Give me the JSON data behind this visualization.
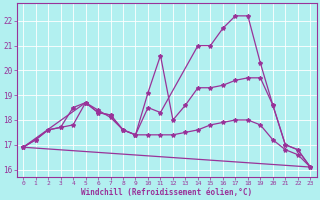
{
  "xlabel": "Windchill (Refroidissement éolien,°C)",
  "background_color": "#b2f0f0",
  "line_color": "#993399",
  "grid_color": "#ffffff",
  "xlim": [
    -0.5,
    23.5
  ],
  "ylim": [
    15.7,
    22.7
  ],
  "yticks": [
    16,
    17,
    18,
    19,
    20,
    21,
    22
  ],
  "xticks": [
    0,
    1,
    2,
    3,
    4,
    5,
    6,
    7,
    8,
    9,
    10,
    11,
    12,
    13,
    14,
    15,
    16,
    17,
    18,
    19,
    20,
    21,
    22,
    23
  ],
  "line1_x": [
    0,
    1,
    2,
    3,
    4,
    5,
    6,
    7,
    8,
    9,
    10,
    11,
    14,
    15,
    16,
    17,
    18,
    19,
    20,
    21,
    22,
    23
  ],
  "line1_y": [
    16.9,
    17.2,
    17.6,
    17.7,
    17.8,
    18.7,
    18.3,
    18.2,
    17.6,
    17.4,
    18.5,
    18.3,
    21.0,
    21.0,
    21.7,
    22.2,
    22.2,
    20.3,
    18.6,
    17.0,
    16.8,
    16.1
  ],
  "line2_x": [
    0,
    5,
    6,
    7,
    8,
    9,
    10,
    11,
    12,
    13,
    14,
    15,
    16,
    17,
    18,
    19,
    20,
    21,
    22,
    23
  ],
  "line2_y": [
    16.9,
    18.7,
    18.3,
    18.2,
    17.6,
    17.4,
    19.1,
    20.6,
    18.0,
    18.6,
    19.3,
    19.3,
    19.4,
    19.6,
    19.7,
    19.7,
    18.6,
    17.0,
    16.8,
    16.1
  ],
  "line3_x": [
    0,
    1,
    2,
    3,
    4,
    5,
    6,
    7,
    8,
    9,
    10,
    11,
    12,
    13,
    14,
    15,
    16,
    17,
    18,
    19,
    20,
    21,
    22,
    23
  ],
  "line3_y": [
    16.9,
    17.2,
    17.6,
    17.7,
    18.5,
    18.7,
    18.4,
    18.1,
    17.6,
    17.4,
    17.4,
    17.4,
    17.4,
    17.5,
    17.6,
    17.8,
    17.9,
    18.0,
    18.0,
    17.8,
    17.2,
    16.8,
    16.6,
    16.1
  ],
  "line4_x": [
    0,
    23
  ],
  "line4_y": [
    16.9,
    16.1
  ]
}
